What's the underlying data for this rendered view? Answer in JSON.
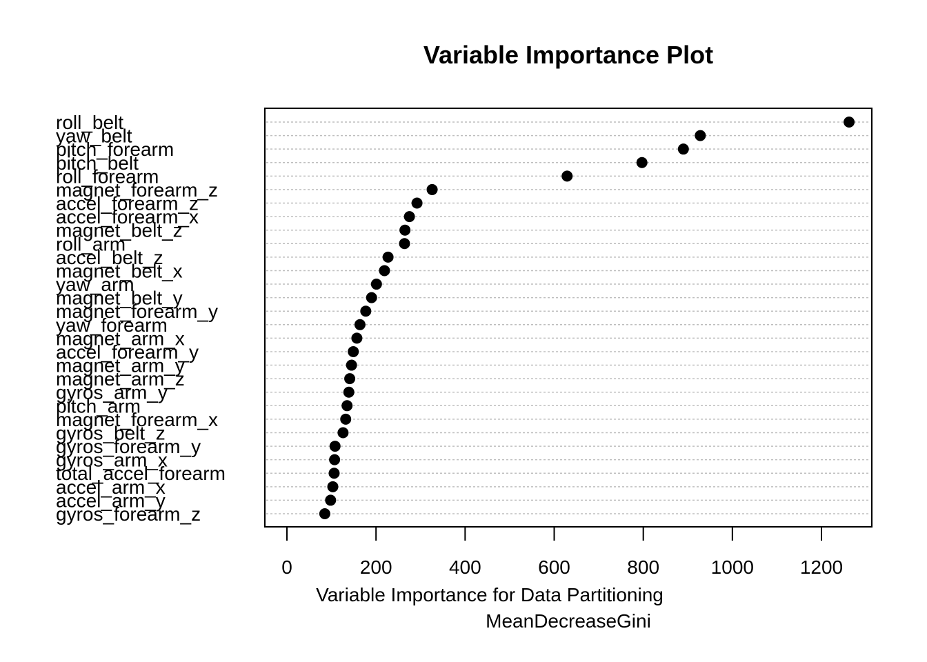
{
  "chart_data": {
    "type": "scatter",
    "title": "Variable Importance Plot",
    "xlabel": "Variable Importance for Data Partitioning",
    "xlabel_sub": "MeanDecreaseGini",
    "xlim": [
      0,
      1300
    ],
    "x_ticks": [
      0,
      200,
      400,
      600,
      800,
      1000,
      1200
    ],
    "grid": "dotted horizontal",
    "categories": [
      "roll_belt",
      "yaw_belt",
      "pitch_forearm",
      "pitch_belt",
      "roll_forearm",
      "magnet_forearm_z",
      "accel_forearm_z",
      "accel_forearm_x",
      "magnet_belt_z",
      "roll_arm",
      "accel_belt_z",
      "magnet_belt_x",
      "yaw_arm",
      "magnet_belt_y",
      "magnet_forearm_y",
      "yaw_forearm",
      "magnet_arm_x",
      "accel_forearm_y",
      "magnet_arm_y",
      "magnet_arm_z",
      "gyros_arm_y",
      "pitch_arm",
      "magnet_forearm_x",
      "gyros_belt_z",
      "gyros_forearm_y",
      "gyros_arm_x",
      "total_accel_forearm",
      "accel_arm_x",
      "accel_arm_y",
      "gyros_forearm_z"
    ],
    "values": [
      1262,
      928,
      890,
      797,
      629,
      326,
      292,
      275,
      265,
      264,
      227,
      219,
      201,
      190,
      177,
      164,
      157,
      149,
      145,
      141,
      139,
      135,
      132,
      126,
      108,
      107,
      106,
      103,
      98,
      85
    ]
  }
}
